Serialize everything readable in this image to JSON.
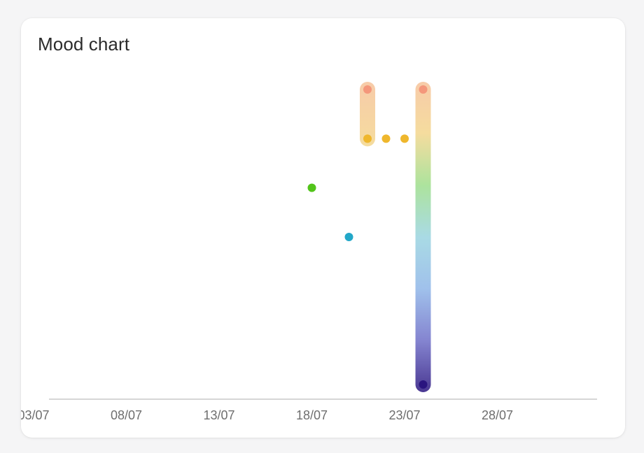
{
  "card": {
    "title": "Mood chart"
  },
  "chart_data": {
    "type": "scatter",
    "title": "Mood chart",
    "xlabel": "",
    "ylabel": "",
    "x_tick_labels": [
      "03/07",
      "08/07",
      "13/07",
      "18/07",
      "23/07",
      "28/07"
    ],
    "x_tick_days": [
      3,
      8,
      13,
      18,
      23,
      28
    ],
    "xlim_days": [
      1.5,
      31
    ],
    "ylim": [
      0,
      7
    ],
    "grid": false,
    "points": [
      {
        "day": 18,
        "level": 4,
        "color": "#52c41a"
      },
      {
        "day": 20,
        "level": 3,
        "color": "#22a7c8"
      },
      {
        "day": 21,
        "level": 6,
        "color": "#f4977b"
      },
      {
        "day": 21,
        "level": 5,
        "color": "#efb72d"
      },
      {
        "day": 22,
        "level": 5,
        "color": "#efb72d"
      },
      {
        "day": 23,
        "level": 5,
        "color": "#efb72d"
      },
      {
        "day": 24,
        "level": 6,
        "color": "#f4977b"
      },
      {
        "day": 24,
        "level": 0,
        "color": "#2a157f"
      }
    ],
    "ranges": [
      {
        "day": 21,
        "from": 5,
        "to": 6
      },
      {
        "day": 24,
        "from": 0,
        "to": 6
      }
    ],
    "level_colors": {
      "0": "#2a157f",
      "1": "#6f6fc8",
      "2": "#8fb6e8",
      "3": "#9ad4e0",
      "4": "#9ede8c",
      "5": "#f3d68d",
      "6": "#f6c29a"
    },
    "axis_color": "#bdbdbd"
  }
}
